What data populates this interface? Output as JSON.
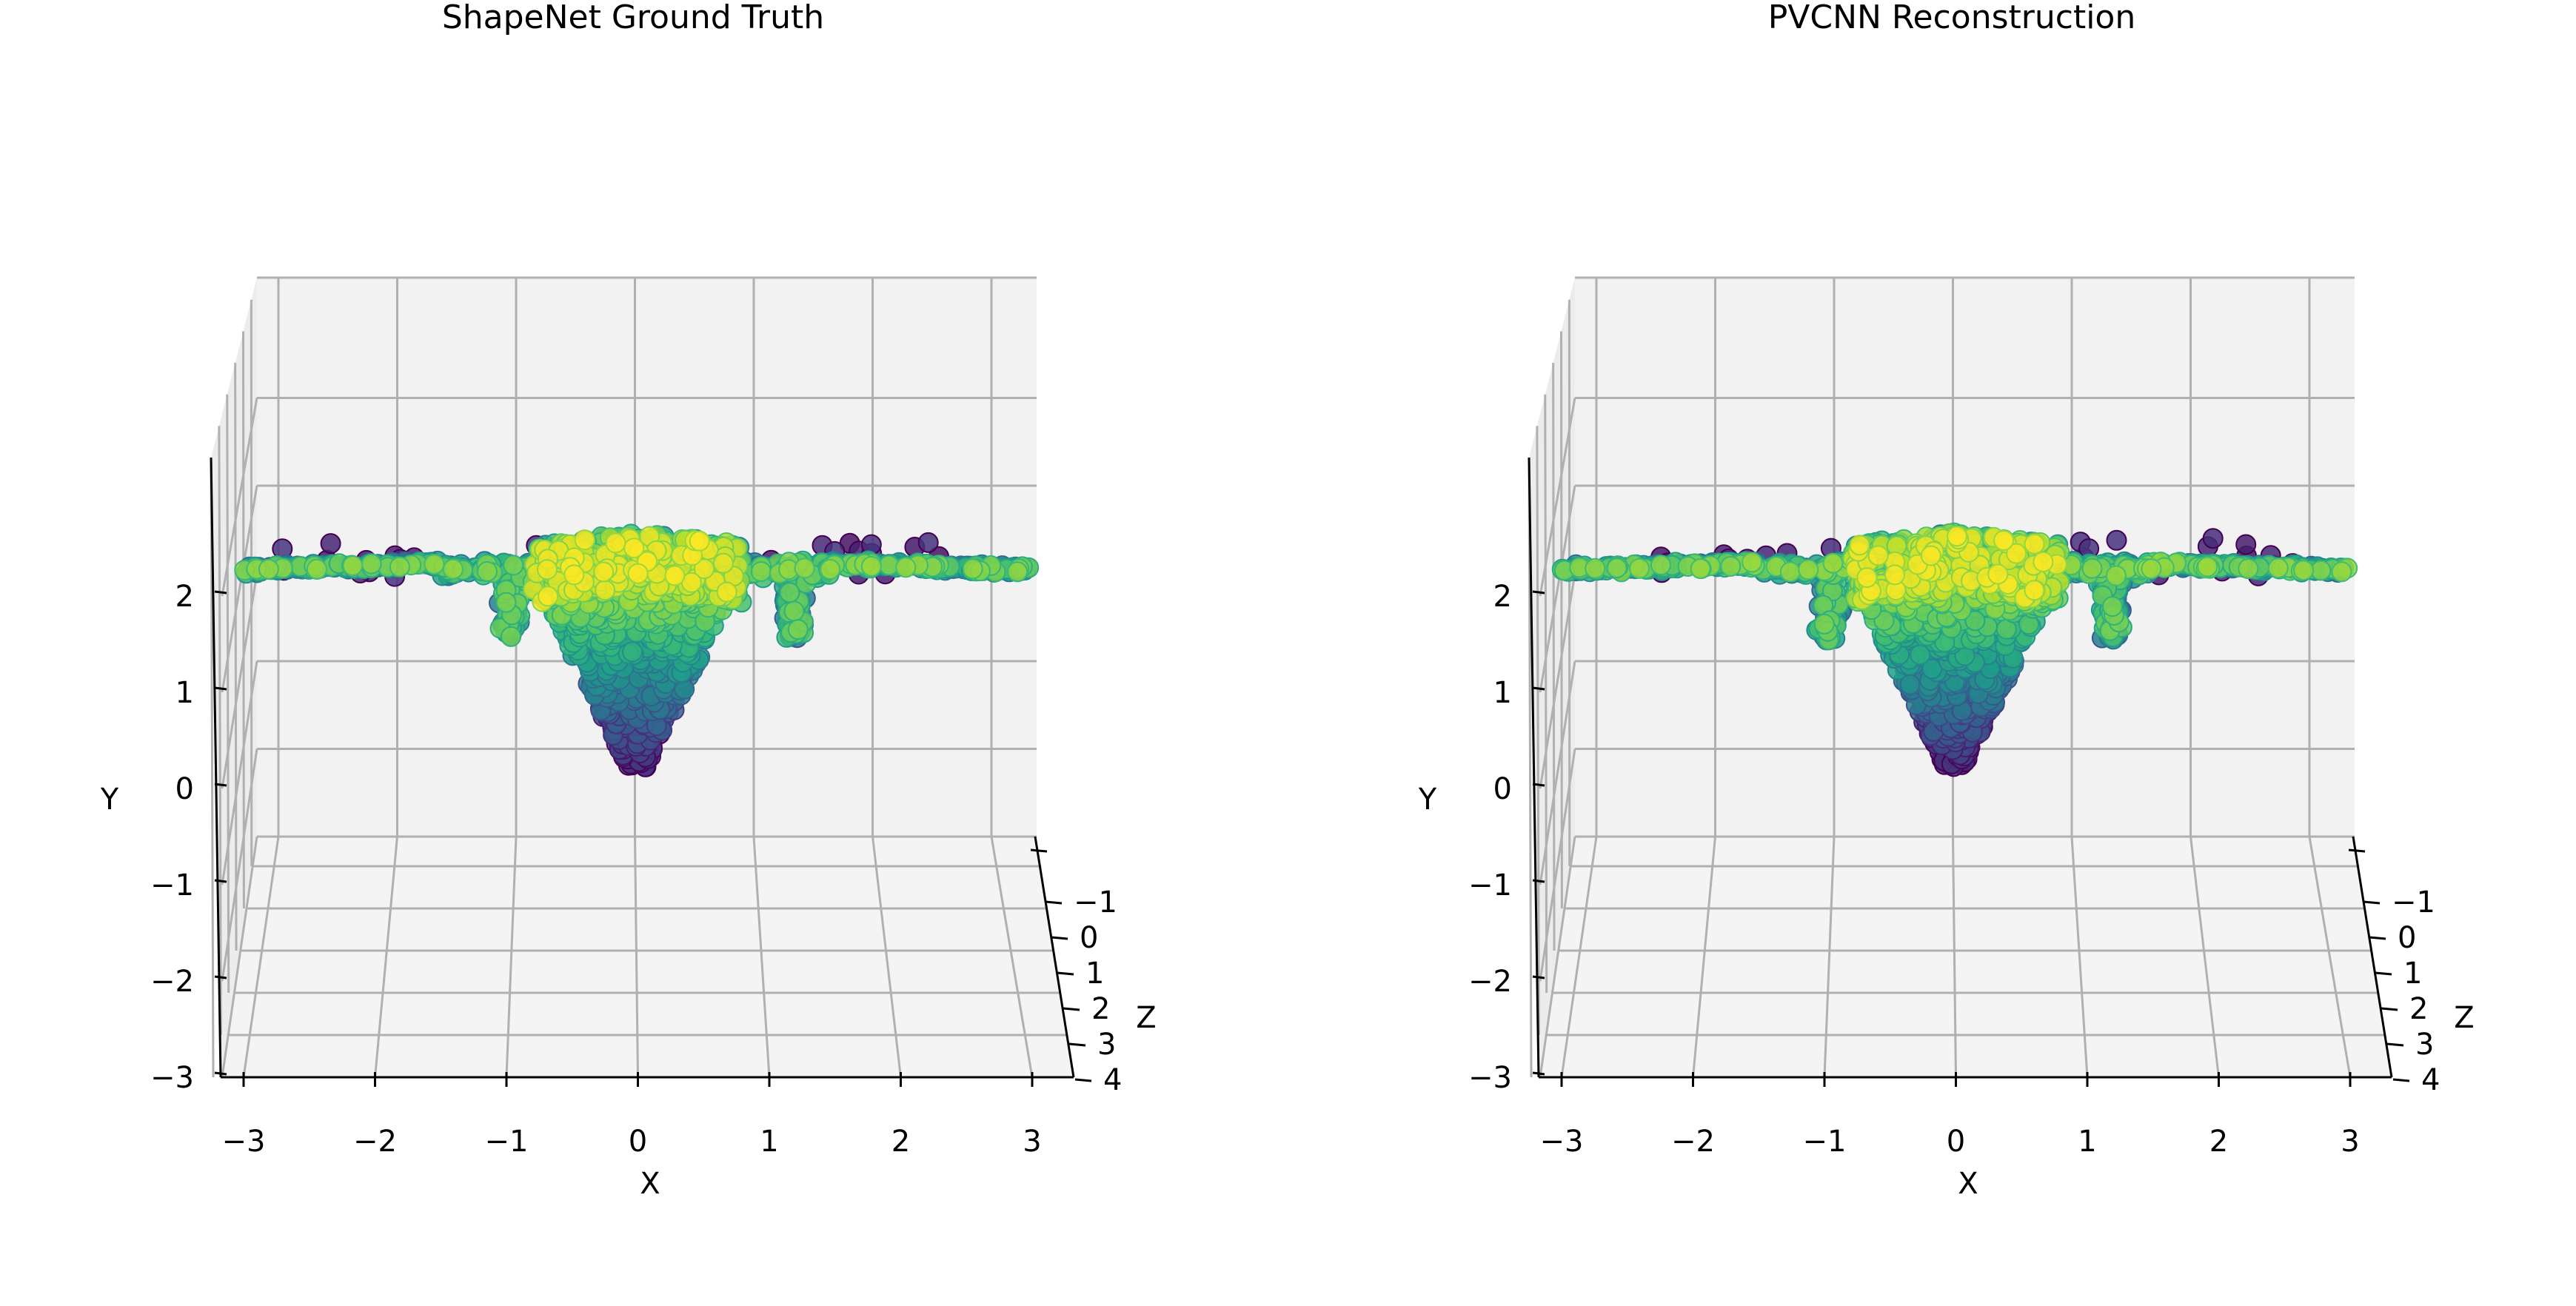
{
  "colors": {
    "pane": "#f2f2f2",
    "grid": "#b0b0b0",
    "axis": "#000000",
    "colormap": "viridis"
  },
  "chart_data": [
    {
      "type": "scatter",
      "projection": "3d",
      "title": "ShapeNet Ground Truth",
      "xlabel": "X",
      "ylabel": "Y",
      "zlabel": "Z",
      "xlim": [
        -3.2,
        3.2
      ],
      "ylim": [
        -3.2,
        3.2
      ],
      "zlim": [
        -2,
        4.2
      ],
      "xticks": [
        {
          "v": -3,
          "label": "−3"
        },
        {
          "v": -2,
          "label": "−2"
        },
        {
          "v": -1,
          "label": "−1"
        },
        {
          "v": 0,
          "label": "0"
        },
        {
          "v": 1,
          "label": "1"
        },
        {
          "v": 2,
          "label": "2"
        },
        {
          "v": 3,
          "label": "3"
        }
      ],
      "yticks": [
        {
          "v": -3,
          "label": "−3"
        },
        {
          "v": -2,
          "label": "−2"
        },
        {
          "v": -1,
          "label": "−1"
        },
        {
          "v": 0,
          "label": "0"
        },
        {
          "v": 1,
          "label": "1"
        },
        {
          "v": 2,
          "label": "2"
        }
      ],
      "zticks": [
        {
          "v": -1,
          "label": "−1"
        },
        {
          "v": 0,
          "label": "0"
        },
        {
          "v": 1,
          "label": "1"
        },
        {
          "v": 2,
          "label": "2"
        },
        {
          "v": 3,
          "label": "3"
        },
        {
          "v": 4,
          "label": "4"
        }
      ],
      "grid": true,
      "point_color": "viridis, mapped to depth",
      "shape": "airplane point cloud, front view",
      "points_approx": 2048
    },
    {
      "type": "scatter",
      "projection": "3d",
      "title": "PVCNN Reconstruction",
      "xlabel": "X",
      "ylabel": "Y",
      "zlabel": "Z",
      "xlim": [
        -3.2,
        3.2
      ],
      "ylim": [
        -3.2,
        3.2
      ],
      "zlim": [
        -2,
        4.2
      ],
      "xticks": [
        {
          "v": -3,
          "label": "−3"
        },
        {
          "v": -2,
          "label": "−2"
        },
        {
          "v": -1,
          "label": "−1"
        },
        {
          "v": 0,
          "label": "0"
        },
        {
          "v": 1,
          "label": "1"
        },
        {
          "v": 2,
          "label": "2"
        },
        {
          "v": 3,
          "label": "3"
        }
      ],
      "yticks": [
        {
          "v": -3,
          "label": "−3"
        },
        {
          "v": -2,
          "label": "−2"
        },
        {
          "v": -1,
          "label": "−1"
        },
        {
          "v": 0,
          "label": "0"
        },
        {
          "v": 1,
          "label": "1"
        },
        {
          "v": 2,
          "label": "2"
        }
      ],
      "zticks": [
        {
          "v": -1,
          "label": "−1"
        },
        {
          "v": 0,
          "label": "0"
        },
        {
          "v": 1,
          "label": "1"
        },
        {
          "v": 2,
          "label": "2"
        },
        {
          "v": 3,
          "label": "3"
        },
        {
          "v": 4,
          "label": "4"
        }
      ],
      "grid": true,
      "point_color": "viridis, mapped to depth",
      "shape": "airplane point cloud, front view",
      "points_approx": 2048
    }
  ]
}
